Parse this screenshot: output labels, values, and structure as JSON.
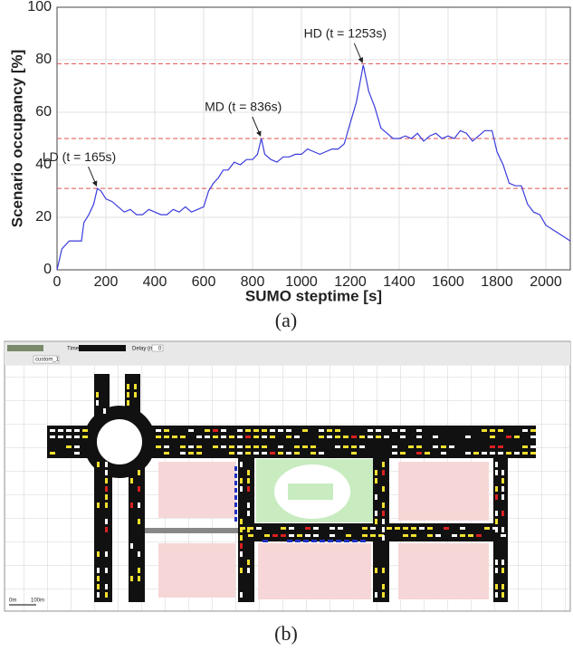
{
  "chart_data": {
    "type": "line",
    "xlabel": "SUMO steptime [s]",
    "ylabel": "Scenario occupancy [%]",
    "x": [
      0,
      20,
      50,
      100,
      110,
      130,
      150,
      165,
      180,
      200,
      225,
      250,
      275,
      300,
      325,
      350,
      375,
      400,
      425,
      450,
      475,
      500,
      525,
      550,
      575,
      600,
      620,
      640,
      660,
      680,
      700,
      725,
      750,
      775,
      800,
      820,
      836,
      850,
      875,
      900,
      925,
      950,
      975,
      1000,
      1025,
      1050,
      1075,
      1100,
      1125,
      1150,
      1175,
      1200,
      1225,
      1253,
      1275,
      1300,
      1325,
      1350,
      1375,
      1400,
      1425,
      1450,
      1475,
      1500,
      1525,
      1550,
      1575,
      1600,
      1625,
      1650,
      1675,
      1700,
      1725,
      1750,
      1780,
      1800,
      1825,
      1850,
      1875,
      1900,
      1925,
      1950,
      1975,
      2000,
      2050,
      2100
    ],
    "series": [
      {
        "color": "#3b3bdc",
        "values": [
          0,
          8,
          11,
          11,
          18,
          21,
          25,
          31,
          30,
          27,
          26,
          24,
          22,
          23,
          21,
          21,
          23,
          22,
          21,
          21,
          23,
          22,
          24,
          22,
          23,
          24,
          30,
          33,
          35,
          38,
          38,
          41,
          40,
          42,
          42,
          44,
          50,
          44,
          42,
          41,
          43,
          43,
          44,
          44,
          46,
          45,
          44,
          45,
          46,
          46,
          48,
          56,
          64,
          78,
          68,
          62,
          54,
          52,
          50,
          50,
          51,
          50,
          52,
          49,
          51,
          52,
          50,
          51,
          50,
          53,
          52,
          49,
          51,
          53,
          53,
          45,
          40,
          33,
          32,
          32,
          25,
          22,
          21,
          17,
          14,
          11
        ]
      }
    ],
    "xlim": [
      0,
      2100
    ],
    "ylim": [
      0,
      100
    ],
    "xticks": [
      0,
      200,
      400,
      600,
      800,
      1000,
      1200,
      1400,
      1600,
      1800,
      2000
    ],
    "yticks": [
      0,
      20,
      40,
      60,
      80,
      100
    ],
    "grid": true,
    "reference_lines": {
      "values": [
        31,
        50,
        78.5
      ],
      "color": "#e05050"
    },
    "annotations": [
      {
        "text": "LD (t = 165s)",
        "x": 165,
        "y": 31
      },
      {
        "text": "MD (t = 836s)",
        "x": 836,
        "y": 50
      },
      {
        "text": "HD (t = 1253s)",
        "x": 1253,
        "y": 78
      }
    ]
  },
  "captions": [
    "(a)",
    "(b)"
  ],
  "screenshot": {
    "time_label": "Time:",
    "delay_label": "Delay (ms):",
    "delay_value": "0",
    "scheme": "custom_1",
    "scale": [
      "0m",
      "100m"
    ]
  }
}
